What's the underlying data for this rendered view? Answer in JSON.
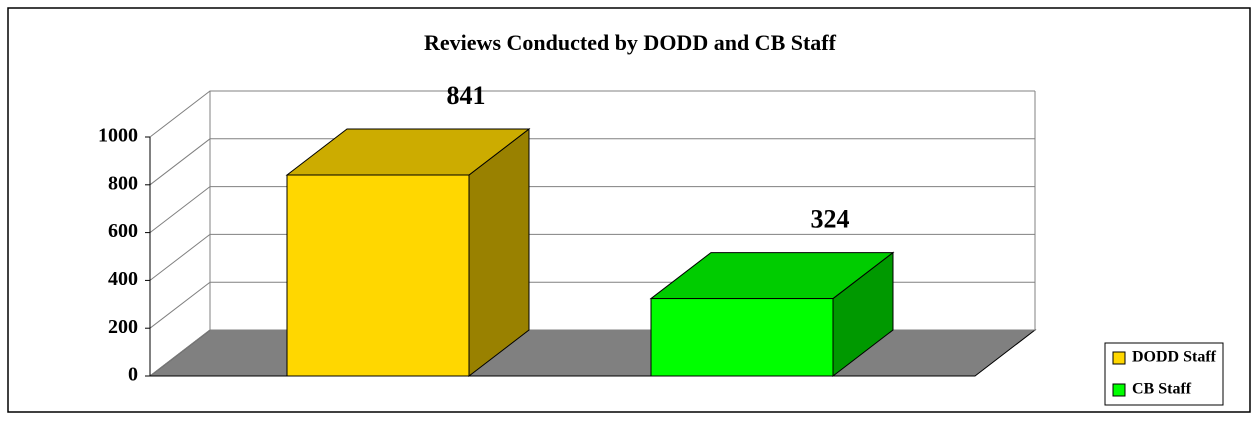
{
  "chart_data": {
    "type": "bar",
    "title": "Reviews Conducted by DODD and CB Staff",
    "categories": [
      "DODD Staff",
      "CB Staff"
    ],
    "values": [
      841,
      324
    ],
    "colors": [
      "#FFD700",
      "#00FF00"
    ],
    "ylim": [
      0,
      1000
    ],
    "yticks": [
      0,
      200,
      400,
      600,
      800,
      1000
    ],
    "grid": true,
    "legend": "right"
  }
}
